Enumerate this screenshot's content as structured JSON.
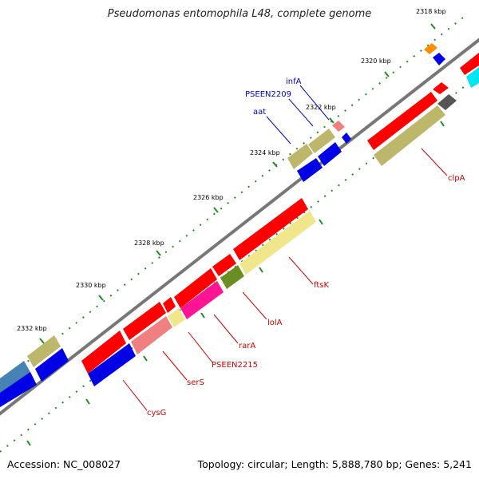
{
  "title": "Pseudomonas entomophila L48, complete genome",
  "footer": {
    "accession": "Accession: NC_008027",
    "summary": "Topology: circular; Length: 5,888,780 bp; Genes: 5,241"
  },
  "ticks": [
    "2318 kbp",
    "2320 kbp",
    "2322 kbp",
    "2324 kbp",
    "2326 kbp",
    "2328 kbp",
    "2330 kbp",
    "2332 kbp"
  ],
  "genes": {
    "infA": "infA",
    "PSEEN2209": "PSEEN2209",
    "aat": "aat",
    "clpA": "clpA",
    "ftsK": "ftsK",
    "lolA": "lolA",
    "rarA": "rarA",
    "PSEEN2215": "PSEEN2215",
    "serS": "serS",
    "cysG": "cysG"
  },
  "colors": {
    "red": "#ff0000",
    "blue": "#0000e6",
    "olive": "#bdb76b",
    "pink": "#f08080",
    "khaki": "#f0e68c",
    "green": "#6b8e23",
    "magenta": "#ff1493",
    "steel": "#4682b4",
    "orange": "#ff8c00",
    "gray": "#555555",
    "cyan": "#00e5ee",
    "label_blue": "#0000cc",
    "label_red": "#cc0000"
  }
}
